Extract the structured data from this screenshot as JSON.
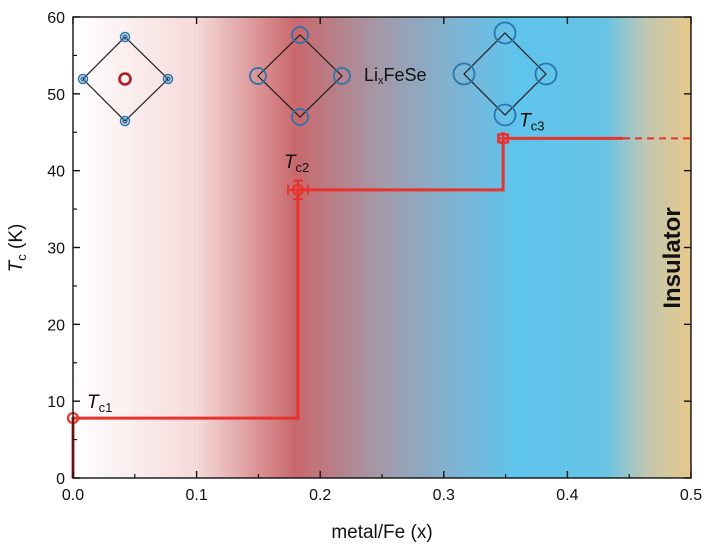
{
  "chart_data": {
    "type": "line",
    "xlabel": "metal/Fe (x)",
    "ylabel": {
      "main": "T",
      "sub": "c",
      "unit": " (K)"
    },
    "xlim": [
      0,
      0.5
    ],
    "ylim": [
      0,
      60
    ],
    "x_ticks": [
      "0.0",
      "0.1",
      "0.2",
      "0.3",
      "0.4",
      "0.5"
    ],
    "y_ticks": [
      "0",
      "10",
      "20",
      "30",
      "40",
      "50",
      "60"
    ],
    "series_color": "#e8322c",
    "step_line": {
      "x": [
        0.0,
        0.0,
        0.182,
        0.182,
        0.348,
        0.348,
        0.445
      ],
      "y": [
        0,
        7.8,
        7.8,
        37.5,
        37.5,
        44.2,
        44.2
      ]
    },
    "dashed_extension": {
      "x": [
        0.445,
        0.5
      ],
      "y": [
        44.2,
        44.2
      ]
    },
    "points": [
      {
        "label": "T",
        "sub": "c1",
        "x": 0.0,
        "y": 7.8,
        "xerr": 0,
        "yerr": 0
      },
      {
        "label": "T",
        "sub": "c2",
        "x": 0.182,
        "y": 37.5,
        "xerr": 0.008,
        "yerr": 1.2
      },
      {
        "label": "T",
        "sub": "c3",
        "x": 0.348,
        "y": 44.2,
        "xerr": 0.004,
        "yerr": 0.5
      }
    ],
    "region_label": "Insulator",
    "compound_label": {
      "prefix": "Li",
      "sub": "x",
      "suffix": "FeSe"
    },
    "background_gradient": [
      "#ffffff",
      "#c86a6e",
      "#8a9fb8",
      "#62c4ea",
      "#5cc3ee",
      "#e8c88a"
    ],
    "grid": false,
    "legend": "none"
  }
}
